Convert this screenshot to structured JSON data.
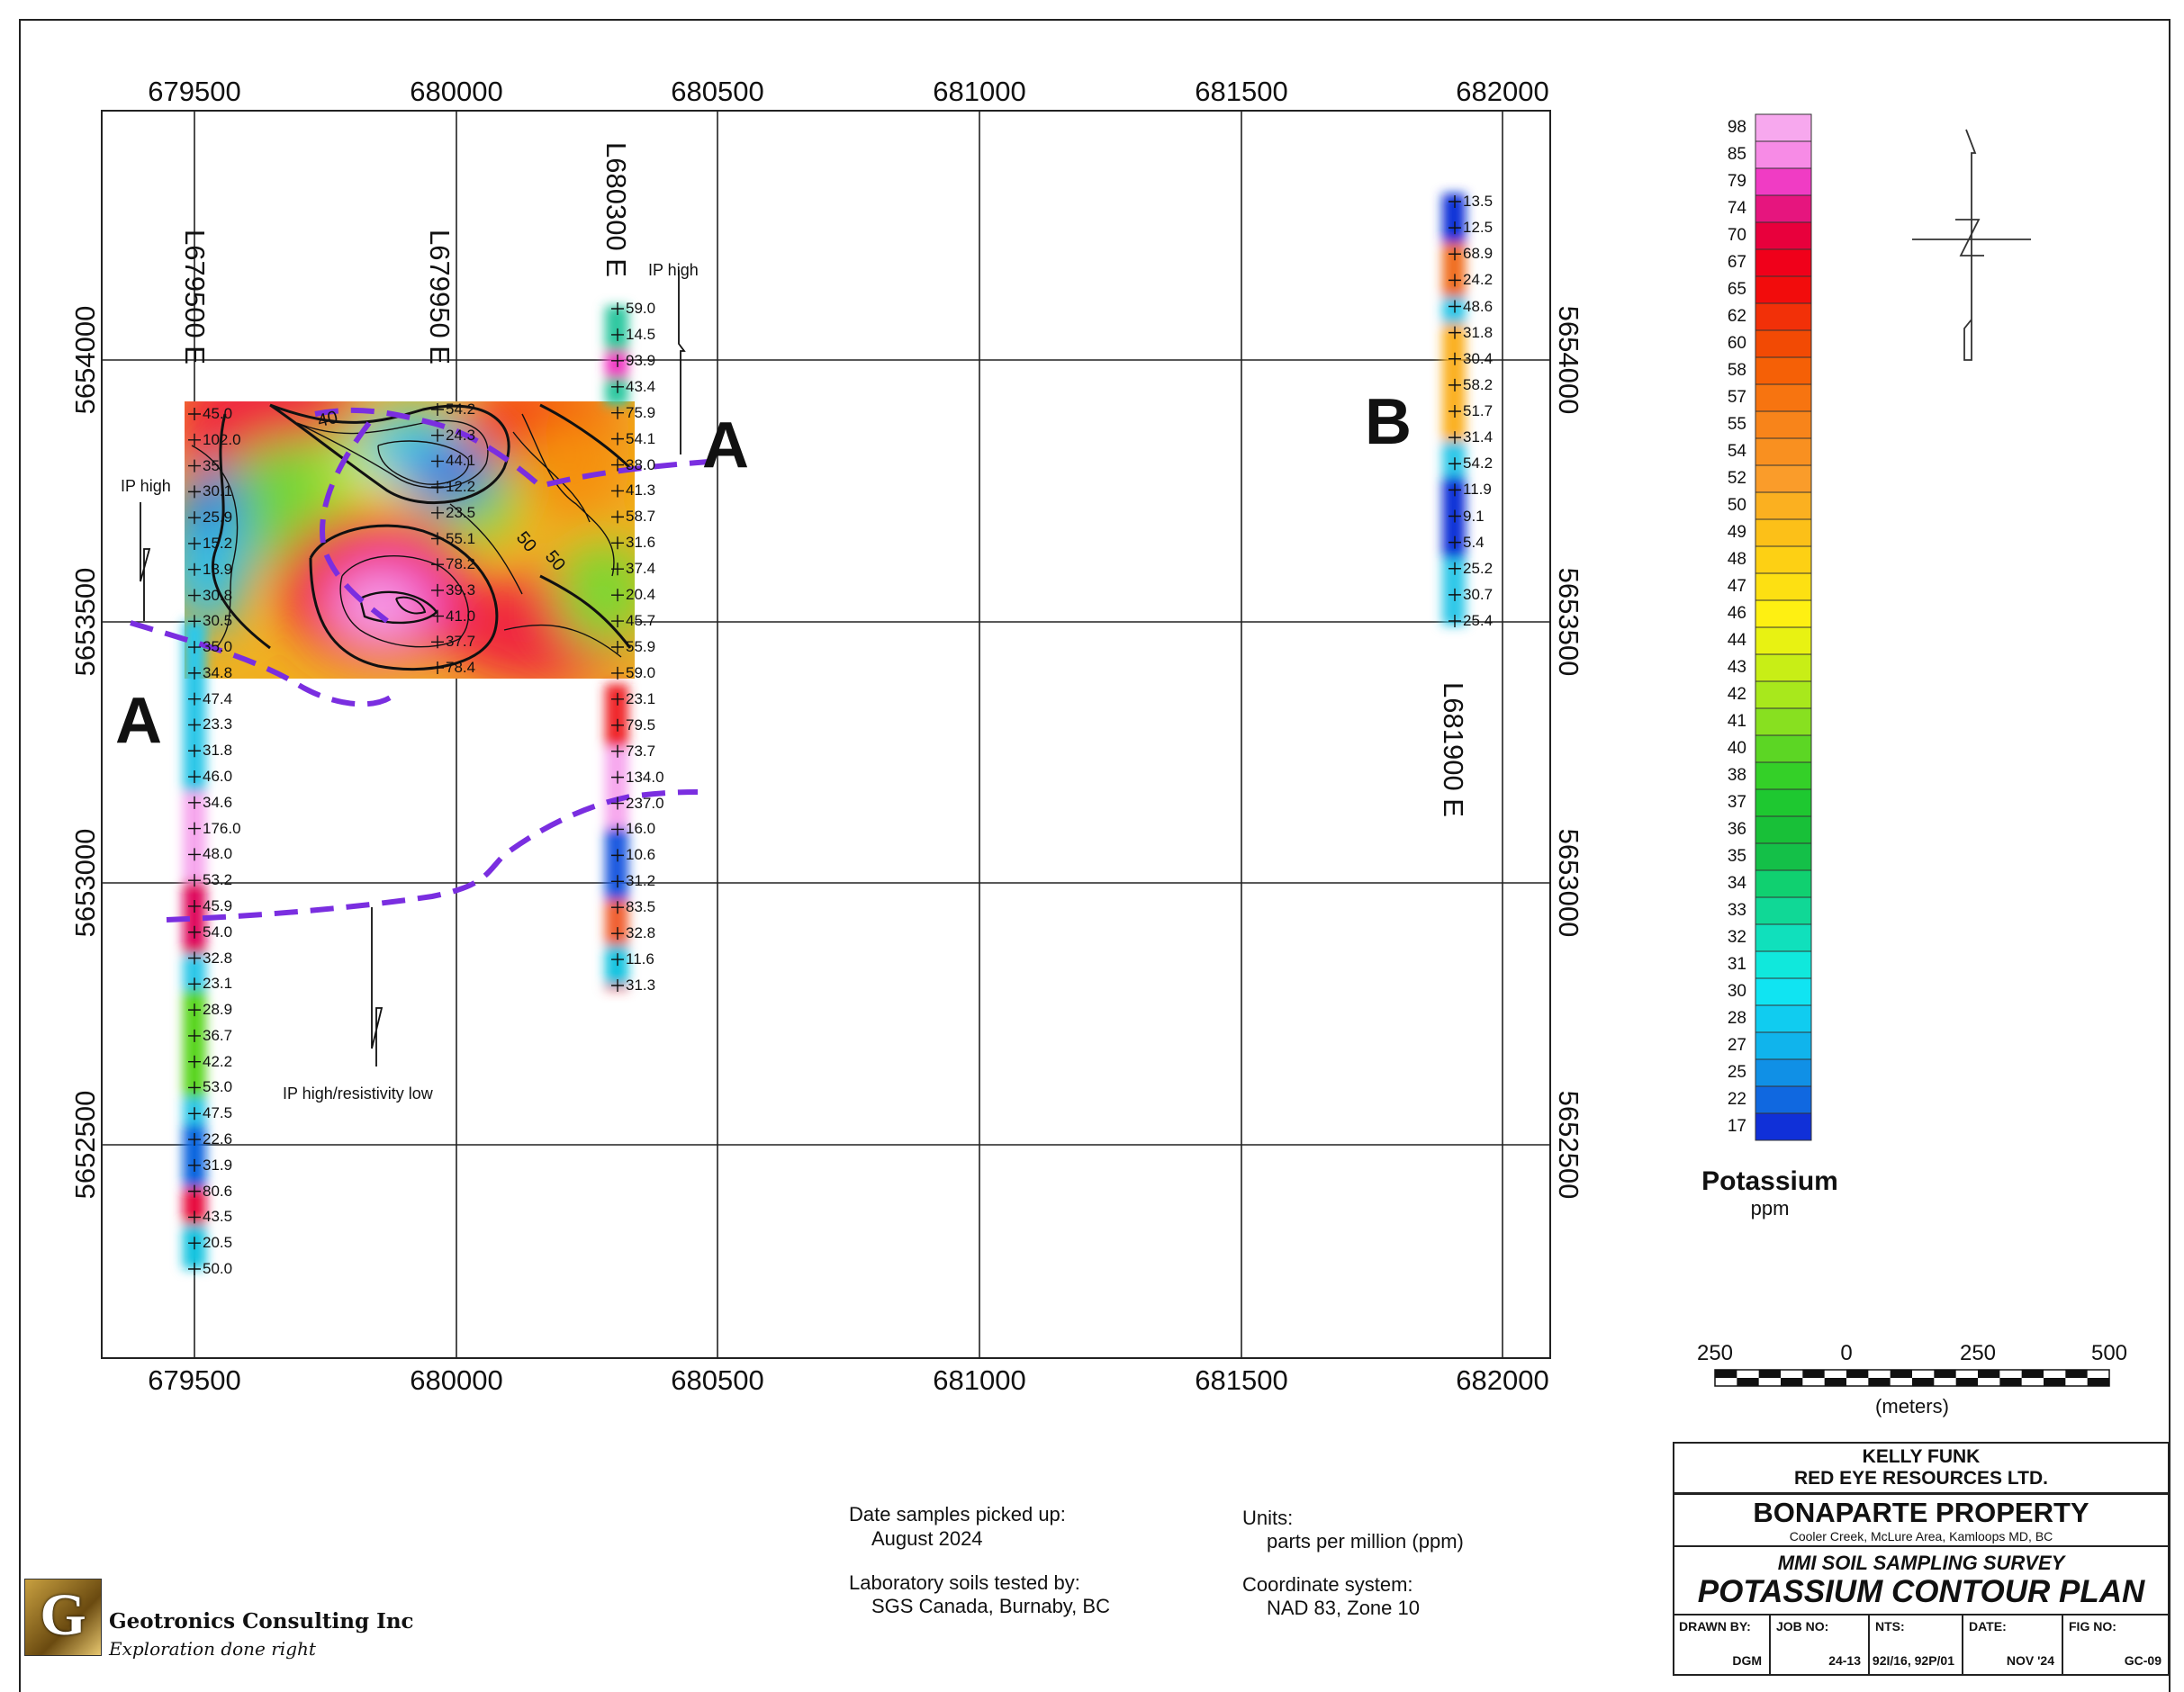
{
  "map": {
    "easting_ticks": [
      "679500",
      "680000",
      "680500",
      "681000",
      "681500",
      "682000"
    ],
    "northing_ticks": [
      "5654000",
      "5653500",
      "5653000",
      "5652500"
    ],
    "lines": [
      {
        "label": "L679500 E",
        "values": [
          "45.0",
          "102.0",
          "35",
          "30.1",
          "25.9",
          "15.2",
          "13.9",
          "30.8",
          "30.5",
          "35.0",
          "34.8",
          "47.4",
          "23.3",
          "31.8",
          "46.0",
          "34.6",
          "176.0",
          "48.0",
          "53.2",
          "45.9",
          "54.0",
          "32.8",
          "23.1",
          "28.9",
          "36.7",
          "42.2",
          "53.0",
          "47.5",
          "22.6",
          "31.9",
          "80.6",
          "43.5",
          "20.5",
          "50.0"
        ]
      },
      {
        "label": "L679950 E",
        "values": [
          "54.2",
          "24.3",
          "44.1",
          "12.2",
          "23.5",
          "55.1",
          "78.2",
          "39.3",
          "41.0",
          "37.7",
          "78.4"
        ]
      },
      {
        "label": "L680300 E",
        "values": [
          "59.0",
          "14.5",
          "93.9",
          "43.4",
          "75.9",
          "54.1",
          "38.0",
          "41.3",
          "58.7",
          "31.6",
          "37.4",
          "20.4",
          "45.7",
          "55.9",
          "59.0",
          "23.1",
          "79.5",
          "73.7",
          "134.0",
          "237.0",
          "16.0",
          "10.6",
          "31.2",
          "83.5",
          "32.8",
          "11.6",
          "31.3"
        ]
      },
      {
        "label": "L681900 E",
        "values": [
          "13.5",
          "12.5",
          "68.9",
          "24.2",
          "48.6",
          "31.8",
          "30.4",
          "58.2",
          "51.7",
          "31.4",
          "54.2",
          "11.9",
          "9.1",
          "5.4",
          "25.2",
          "30.7",
          "25.4"
        ]
      }
    ],
    "contour_labels": [
      "40",
      "50",
      "50"
    ],
    "section_labels": [
      "A",
      "A",
      "B"
    ],
    "annotations": [
      "IP high",
      "IP high",
      "IP high/resistivity low"
    ]
  },
  "legend": {
    "values": [
      "98",
      "85",
      "79",
      "74",
      "70",
      "67",
      "65",
      "62",
      "60",
      "58",
      "57",
      "55",
      "54",
      "52",
      "50",
      "49",
      "48",
      "47",
      "46",
      "44",
      "43",
      "42",
      "41",
      "40",
      "38",
      "37",
      "36",
      "35",
      "34",
      "33",
      "32",
      "31",
      "30",
      "28",
      "27",
      "25",
      "22",
      "17"
    ],
    "colors": [
      "#f7a8ee",
      "#f78be6",
      "#f03cc4",
      "#e6157e",
      "#e8003c",
      "#f0001a",
      "#f20c0c",
      "#f23008",
      "#f24a04",
      "#f56006",
      "#f77410",
      "#f8841a",
      "#f99020",
      "#fa9c2a",
      "#fbb020",
      "#fcc018",
      "#fdd014",
      "#fde012",
      "#fef012",
      "#e8f212",
      "#c8ee16",
      "#a8e81c",
      "#88e020",
      "#5cd624",
      "#34d028",
      "#1ec830",
      "#18c038",
      "#14c048",
      "#10d070",
      "#10d896",
      "#10e0bc",
      "#10e8dc",
      "#10e4f2",
      "#10ccf0",
      "#10b4ec",
      "#1090e6",
      "#1068e0",
      "#1030d8"
    ],
    "title": "Potassium",
    "unit": "ppm"
  },
  "scale": {
    "labels": [
      "250",
      "0",
      "250",
      "500"
    ],
    "unit": "(meters)"
  },
  "notes": {
    "date_label": "Date samples picked up:",
    "date_value": "August 2024",
    "lab_label": "Laboratory soils tested by:",
    "lab_value": "SGS Canada, Burnaby, BC",
    "units_label": "Units:",
    "units_value": "parts per million (ppm)",
    "coord_label": "Coordinate system:",
    "coord_value": "NAD 83, Zone 10"
  },
  "company": {
    "name": "Geotronics Consulting Inc",
    "tagline": "Exploration done right",
    "logo_letter": "G"
  },
  "title_block": {
    "client1": "KELLY FUNK",
    "client2": "RED EYE RESOURCES LTD.",
    "property": "BONAPARTE PROPERTY",
    "location": "Cooler Creek,  McLure Area, Kamloops MD, BC",
    "survey": "MMI SOIL SAMPLING SURVEY",
    "plan": "POTASSIUM CONTOUR PLAN",
    "cells": [
      {
        "label": "DRAWN BY:",
        "value": "DGM"
      },
      {
        "label": "JOB NO:",
        "value": "24-13"
      },
      {
        "label": "NTS:",
        "value": "92I/16, 92P/01"
      },
      {
        "label": "DATE:",
        "value": "NOV '24"
      },
      {
        "label": "FIG NO:",
        "value": "GC-09"
      }
    ]
  }
}
